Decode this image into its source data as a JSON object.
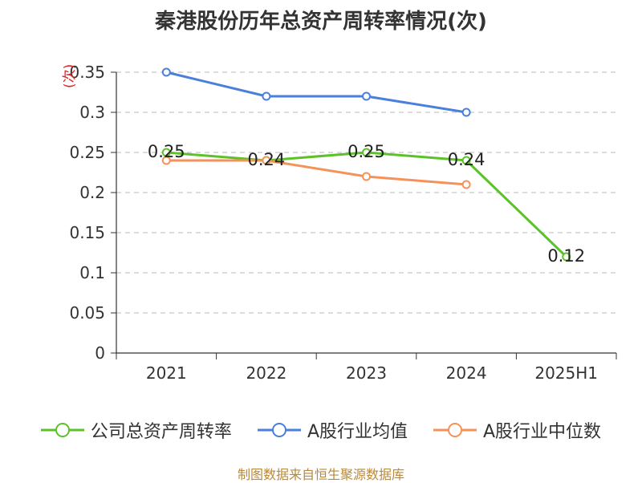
{
  "chart_data": {
    "type": "line",
    "title": "秦港股份历年总资产周转率情况(次)",
    "ylabel": "(次)",
    "xlabel": "",
    "categories": [
      "2021",
      "2022",
      "2023",
      "2024",
      "2025H1"
    ],
    "ylim": [
      0,
      0.35
    ],
    "yticks": [
      0,
      0.05,
      0.1,
      0.15,
      0.2,
      0.25,
      0.3,
      0.35
    ],
    "ytick_labels": [
      "0",
      "0.05",
      "0.1",
      "0.15",
      "0.2",
      "0.25",
      "0.3",
      "0.35"
    ],
    "grid": true,
    "legend_position": "bottom",
    "series": [
      {
        "name": "公司总资产周转率",
        "color": "#5bc22a",
        "values": [
          0.25,
          0.24,
          0.25,
          0.24,
          0.12
        ],
        "data_labels": [
          "0.25",
          "0.24",
          "0.25",
          "0.24",
          "0.12"
        ]
      },
      {
        "name": "A股行业均值",
        "color": "#4a7fdb",
        "values": [
          0.35,
          0.32,
          0.32,
          0.3,
          null
        ]
      },
      {
        "name": "A股行业中位数",
        "color": "#f5925a",
        "values": [
          0.24,
          0.24,
          0.22,
          0.21,
          null
        ]
      }
    ]
  },
  "source": "制图数据来自恒生聚源数据库"
}
